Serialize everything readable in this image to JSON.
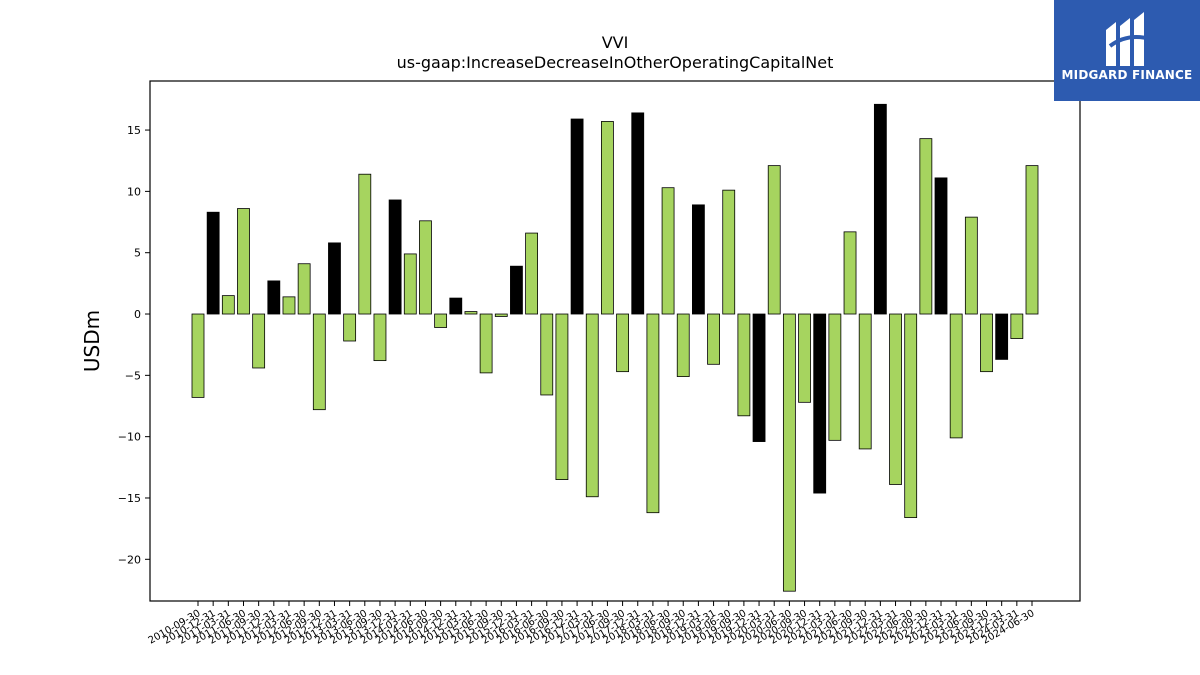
{
  "logo": {
    "text": "MIDGARD FINANCE"
  },
  "colors": {
    "highlight": "#000000",
    "default": "#a6d45f",
    "edge": "#000000"
  },
  "chart_data": {
    "type": "bar",
    "title": "VVI",
    "subtitle": "us-gaap:IncreaseDecreaseInOtherOperatingCapitalNet",
    "xlabel": "",
    "ylabel": "USDm",
    "ylim": [
      -23.4,
      19.0
    ],
    "yticks": [
      -20,
      -15,
      -10,
      -5,
      0,
      5,
      10,
      15
    ],
    "grid": false,
    "categories": [
      "2010-09-30",
      "2010-12-31",
      "2011-03-31",
      "2011-06-30",
      "2011-09-30",
      "2011-12-31",
      "2012-03-31",
      "2012-06-30",
      "2012-09-30",
      "2012-12-31",
      "2013-03-31",
      "2013-06-30",
      "2013-09-30",
      "2013-12-31",
      "2014-03-31",
      "2014-06-30",
      "2014-09-30",
      "2014-12-31",
      "2015-03-31",
      "2015-06-30",
      "2015-09-30",
      "2015-12-31",
      "2016-03-31",
      "2016-06-30",
      "2016-09-30",
      "2016-12-31",
      "2017-03-31",
      "2017-06-30",
      "2017-09-30",
      "2017-12-31",
      "2018-03-31",
      "2018-06-30",
      "2018-09-30",
      "2018-12-31",
      "2019-03-31",
      "2019-06-30",
      "2019-09-30",
      "2019-12-31",
      "2020-03-31",
      "2020-06-30",
      "2020-09-30",
      "2020-12-31",
      "2021-03-31",
      "2021-06-30",
      "2021-09-30",
      "2021-12-31",
      "2022-03-31",
      "2022-06-30",
      "2022-09-30",
      "2022-12-31",
      "2023-03-31",
      "2023-06-30",
      "2023-09-30",
      "2023-12-31",
      "2024-03-31",
      "2024-06-30"
    ],
    "values": [
      -6.8,
      8.3,
      1.5,
      8.6,
      -4.4,
      2.7,
      1.4,
      4.1,
      -7.8,
      5.8,
      -2.2,
      11.4,
      -3.8,
      9.3,
      4.9,
      7.6,
      -1.1,
      1.3,
      0.2,
      -4.8,
      -0.2,
      3.9,
      6.6,
      -6.6,
      -13.5,
      15.9,
      -14.9,
      15.7,
      -4.7,
      16.4,
      -16.2,
      10.3,
      -5.1,
      8.9,
      -4.1,
      10.1,
      -8.3,
      -10.4,
      12.1,
      -22.6,
      -7.2,
      -14.6,
      -10.3,
      6.7,
      -11.0,
      17.1,
      -13.9,
      -16.6,
      14.3,
      11.1,
      -10.1,
      7.9,
      -4.7,
      -3.7,
      -2.0,
      12.1
    ],
    "highlight_indices": [
      1,
      5,
      9,
      13,
      17,
      21,
      25,
      29,
      33,
      37,
      41,
      45,
      49,
      53
    ]
  }
}
